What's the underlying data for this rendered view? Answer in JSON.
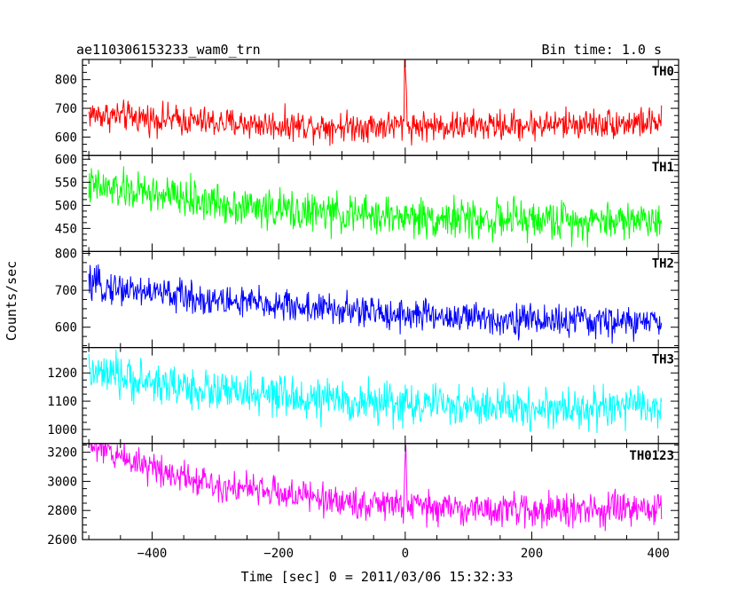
{
  "chart_data": {
    "type": "line",
    "title": "ae110306153233_wam0_trn",
    "bin_time_label": "Bin time: 1.0 s",
    "xlabel": "Time [sec] 0 = 2011/03/06 15:32:33",
    "ylabel": "Counts/sec",
    "xlim": [
      -510,
      432
    ],
    "x_ticks": [
      -400,
      -200,
      0,
      200,
      400
    ],
    "x_tick_labels": [
      "−400",
      "−200",
      "0",
      "200",
      "400"
    ],
    "x_start": -500,
    "x_end": 405,
    "panels": [
      {
        "name": "TH0",
        "color": "#ff0000",
        "ylim": [
          536,
          870
        ],
        "y_ticks": [
          600,
          700,
          800
        ],
        "y_tick_labels": [
          "600",
          "700",
          "800"
        ],
        "trend": [
          [
            -500,
            680
          ],
          [
            -400,
            665
          ],
          [
            -300,
            650
          ],
          [
            -200,
            642
          ],
          [
            -100,
            638
          ],
          [
            0,
            640
          ],
          [
            100,
            638
          ],
          [
            200,
            642
          ],
          [
            300,
            648
          ],
          [
            405,
            650
          ]
        ],
        "noise": 26,
        "spikes": [
          [
            -1,
            870
          ],
          [
            0,
            840
          ],
          [
            1,
            800
          ],
          [
            2,
            760
          ]
        ]
      },
      {
        "name": "TH1",
        "color": "#00ff00",
        "ylim": [
          400,
          608
        ],
        "y_ticks": [
          450,
          500,
          550,
          600
        ],
        "y_tick_labels": [
          "450",
          "500",
          "550",
          "600"
        ],
        "trend": [
          [
            -500,
            540
          ],
          [
            -400,
            525
          ],
          [
            -300,
            505
          ],
          [
            -200,
            490
          ],
          [
            -100,
            480
          ],
          [
            0,
            475
          ],
          [
            100,
            470
          ],
          [
            200,
            468
          ],
          [
            300,
            468
          ],
          [
            405,
            470
          ]
        ],
        "noise": 21,
        "spikes": []
      },
      {
        "name": "TH2",
        "color": "#0000ff",
        "ylim": [
          545,
          805
        ],
        "y_ticks": [
          600,
          700,
          800
        ],
        "y_tick_labels": [
          "600",
          "700",
          "800"
        ],
        "trend": [
          [
            -500,
            715
          ],
          [
            -400,
            695
          ],
          [
            -300,
            672
          ],
          [
            -200,
            660
          ],
          [
            -100,
            645
          ],
          [
            0,
            635
          ],
          [
            100,
            625
          ],
          [
            200,
            620
          ],
          [
            300,
            615
          ],
          [
            405,
            612
          ]
        ],
        "noise": 22,
        "spikes": []
      },
      {
        "name": "TH3",
        "color": "#00ffff",
        "ylim": [
          950,
          1290
        ],
        "y_ticks": [
          1000,
          1100,
          1200
        ],
        "y_tick_labels": [
          "1000",
          "1100",
          "1200"
        ],
        "trend": [
          [
            -500,
            1200
          ],
          [
            -400,
            1165
          ],
          [
            -300,
            1135
          ],
          [
            -200,
            1115
          ],
          [
            -100,
            1100
          ],
          [
            0,
            1090
          ],
          [
            100,
            1080
          ],
          [
            200,
            1075
          ],
          [
            300,
            1075
          ],
          [
            405,
            1080
          ]
        ],
        "noise": 36,
        "spikes": []
      },
      {
        "name": "TH0123",
        "color": "#ff00ff",
        "ylim": [
          2600,
          3260
        ],
        "y_ticks": [
          2600,
          2800,
          3000,
          3200
        ],
        "y_tick_labels": [
          "2600",
          "2800",
          "3000",
          "3200"
        ],
        "trend": [
          [
            -500,
            3250
          ],
          [
            -400,
            3100
          ],
          [
            -300,
            2980
          ],
          [
            -200,
            2920
          ],
          [
            -100,
            2860
          ],
          [
            0,
            2830
          ],
          [
            100,
            2810
          ],
          [
            200,
            2800
          ],
          [
            300,
            2800
          ],
          [
            405,
            2810
          ]
        ],
        "noise": 55,
        "spikes": [
          [
            -1,
            3050
          ],
          [
            0,
            3180
          ],
          [
            1,
            3250
          ],
          [
            2,
            3050
          ]
        ]
      }
    ],
    "grid": false,
    "legend": "none"
  }
}
